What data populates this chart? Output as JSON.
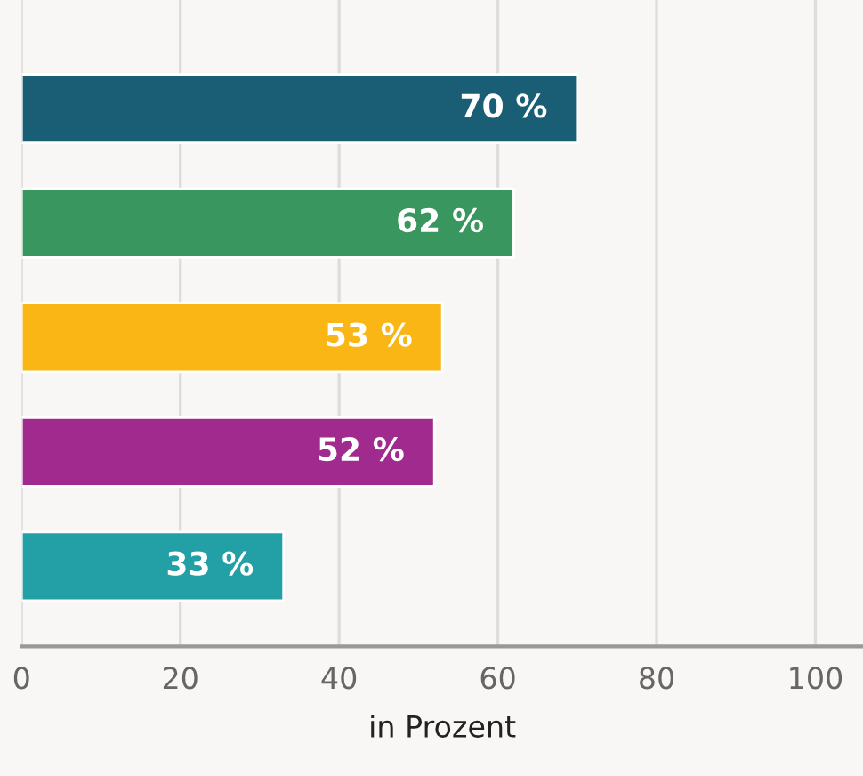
{
  "chart_data": {
    "type": "bar",
    "orientation": "horizontal",
    "xlabel": "in Prozent",
    "categories": [
      null,
      null,
      null,
      null,
      null
    ],
    "values": [
      70,
      62,
      53,
      52,
      33
    ],
    "colors": [
      "#1a5e75",
      "#38965e",
      "#f9b614",
      "#a02a8e",
      "#22a0a6"
    ],
    "value_labels": [
      "70 %",
      "62 %",
      "53 %",
      "52 %",
      "33 %"
    ],
    "xlim": [
      0,
      106
    ],
    "xticks": [
      0,
      20,
      40,
      60,
      80,
      100
    ],
    "grid": "x"
  }
}
